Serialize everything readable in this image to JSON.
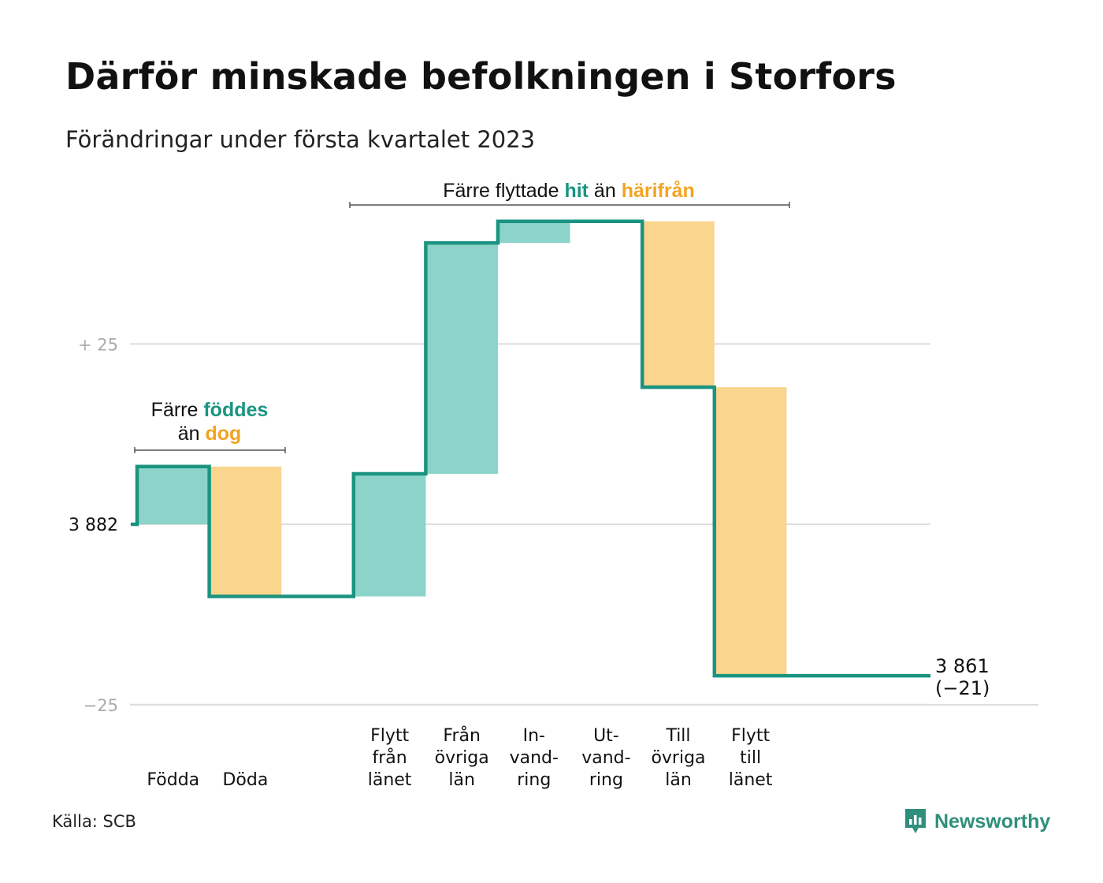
{
  "title": "Därför minskade befolkningen i Storfors",
  "subtitle": "Förändringar under första kvartalet 2023",
  "source": "Källa: SCB",
  "brand": "Newsworthy",
  "colors": {
    "line": "#1a9480",
    "in": "#8cd4c9",
    "out": "#f9d58d",
    "grid": "#dddddd",
    "accent_in": "#1a9480",
    "accent_out": "#f4a321"
  },
  "annotations": {
    "births": {
      "line1_pre": "Färre ",
      "line1_accent": "föddes",
      "line2_pre": "än ",
      "line2_accent": "dog"
    },
    "migration": {
      "pre": "Färre flyttade ",
      "accent1": "hit",
      "mid": " än ",
      "accent2": "härifrån"
    }
  },
  "chart_data": {
    "type": "waterfall",
    "start": {
      "label": "3 882",
      "value": 3882
    },
    "end": {
      "label": "3 861",
      "change_label": "(−21)",
      "value": 3861
    },
    "y_ticks": [
      {
        "label": "+ 25",
        "offset": 25
      },
      {
        "label": "3 882",
        "offset": 0
      },
      {
        "label": "−25",
        "offset": -25
      }
    ],
    "steps": [
      {
        "label": [
          "Födda"
        ],
        "change": 8,
        "kind": "in"
      },
      {
        "label": [
          "Döda"
        ],
        "change": -18,
        "kind": "out"
      },
      {
        "label": [
          ""
        ],
        "change": 0,
        "kind": "gap"
      },
      {
        "label": [
          "Flytt",
          "från",
          "länet"
        ],
        "change": 17,
        "kind": "in"
      },
      {
        "label": [
          "Från",
          "övriga",
          "län"
        ],
        "change": 32,
        "kind": "in"
      },
      {
        "label": [
          "In-",
          "vand-",
          "ring"
        ],
        "change": 3,
        "kind": "in"
      },
      {
        "label": [
          "Ut-",
          "vand-",
          "ring"
        ],
        "change": 0,
        "kind": "out"
      },
      {
        "label": [
          "Till",
          "övriga",
          "län"
        ],
        "change": -23,
        "kind": "out"
      },
      {
        "label": [
          "Flytt",
          "till",
          "länet"
        ],
        "change": -40,
        "kind": "out"
      }
    ]
  }
}
